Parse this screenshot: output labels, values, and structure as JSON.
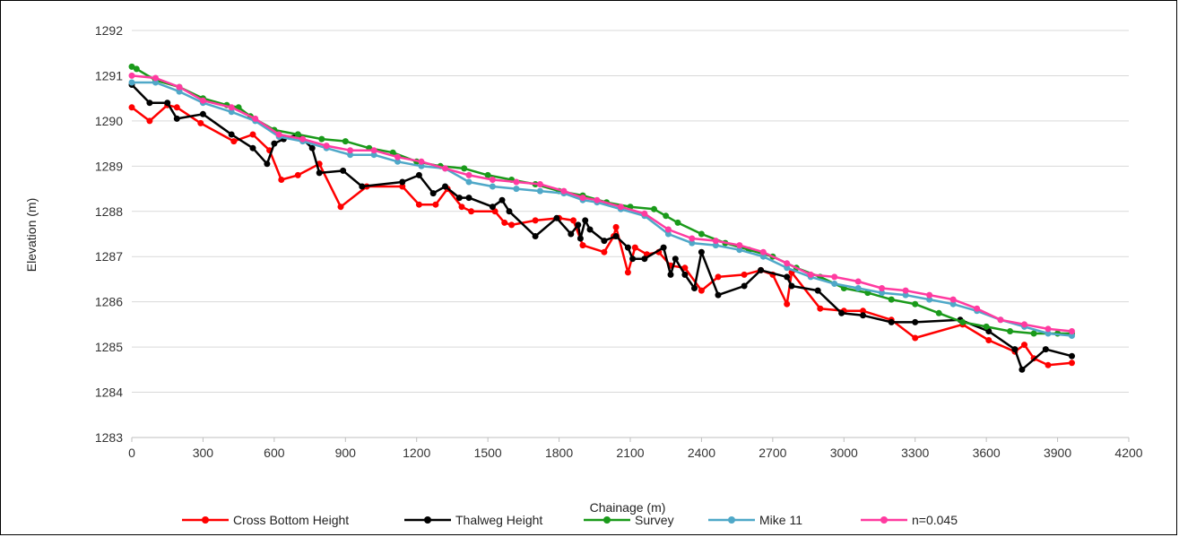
{
  "chart_data": {
    "type": "line",
    "title": "",
    "xlabel": "Chainage (m)",
    "ylabel": "Elevation (m)",
    "xlim": [
      0,
      4200
    ],
    "ylim": [
      1283,
      1292
    ],
    "x_ticks": [
      "0",
      "300",
      "600",
      "900",
      "1200",
      "1500",
      "1800",
      "2100",
      "2400",
      "2700",
      "3000",
      "3300",
      "3600",
      "3900",
      "4200"
    ],
    "y_ticks": [
      "1283",
      "1284",
      "1285",
      "1286",
      "1287",
      "1288",
      "1289",
      "1290",
      "1291",
      "1292"
    ],
    "grid": "horizontal",
    "legend_position": "bottom",
    "series": [
      {
        "name": "Cross Bottom Height",
        "color": "#ff0000",
        "points": [
          [
            0,
            1290.3
          ],
          [
            75,
            1290.0
          ],
          [
            150,
            1290.35
          ],
          [
            190,
            1290.3
          ],
          [
            290,
            1289.95
          ],
          [
            430,
            1289.55
          ],
          [
            510,
            1289.7
          ],
          [
            580,
            1289.35
          ],
          [
            630,
            1288.7
          ],
          [
            700,
            1288.8
          ],
          [
            790,
            1289.05
          ],
          [
            880,
            1288.1
          ],
          [
            990,
            1288.55
          ],
          [
            1140,
            1288.55
          ],
          [
            1210,
            1288.15
          ],
          [
            1280,
            1288.15
          ],
          [
            1330,
            1288.5
          ],
          [
            1390,
            1288.1
          ],
          [
            1430,
            1288.0
          ],
          [
            1530,
            1288.0
          ],
          [
            1570,
            1287.75
          ],
          [
            1600,
            1287.7
          ],
          [
            1700,
            1287.8
          ],
          [
            1800,
            1287.85
          ],
          [
            1860,
            1287.8
          ],
          [
            1900,
            1287.25
          ],
          [
            1990,
            1287.1
          ],
          [
            2030,
            1287.45
          ],
          [
            2040,
            1287.65
          ],
          [
            2090,
            1286.65
          ],
          [
            2120,
            1287.2
          ],
          [
            2170,
            1287.05
          ],
          [
            2220,
            1287.1
          ],
          [
            2270,
            1286.8
          ],
          [
            2330,
            1286.75
          ],
          [
            2400,
            1286.25
          ],
          [
            2470,
            1286.55
          ],
          [
            2580,
            1286.6
          ],
          [
            2650,
            1286.7
          ],
          [
            2700,
            1286.6
          ],
          [
            2760,
            1285.95
          ],
          [
            2780,
            1286.65
          ],
          [
            2900,
            1285.85
          ],
          [
            3000,
            1285.8
          ],
          [
            3080,
            1285.8
          ],
          [
            3200,
            1285.6
          ],
          [
            3300,
            1285.2
          ],
          [
            3500,
            1285.5
          ],
          [
            3610,
            1285.15
          ],
          [
            3720,
            1284.9
          ],
          [
            3760,
            1285.05
          ],
          [
            3800,
            1284.75
          ],
          [
            3860,
            1284.6
          ],
          [
            3960,
            1284.65
          ]
        ]
      },
      {
        "name": "Thalweg Height",
        "color": "#000000",
        "points": [
          [
            0,
            1290.8
          ],
          [
            75,
            1290.4
          ],
          [
            150,
            1290.4
          ],
          [
            190,
            1290.05
          ],
          [
            300,
            1290.15
          ],
          [
            420,
            1289.7
          ],
          [
            510,
            1289.4
          ],
          [
            570,
            1289.05
          ],
          [
            600,
            1289.5
          ],
          [
            640,
            1289.6
          ],
          [
            700,
            1289.7
          ],
          [
            760,
            1289.4
          ],
          [
            790,
            1288.85
          ],
          [
            890,
            1288.9
          ],
          [
            970,
            1288.55
          ],
          [
            1140,
            1288.65
          ],
          [
            1210,
            1288.8
          ],
          [
            1270,
            1288.4
          ],
          [
            1320,
            1288.55
          ],
          [
            1380,
            1288.3
          ],
          [
            1420,
            1288.3
          ],
          [
            1520,
            1288.1
          ],
          [
            1560,
            1288.25
          ],
          [
            1590,
            1288.0
          ],
          [
            1700,
            1287.45
          ],
          [
            1790,
            1287.85
          ],
          [
            1850,
            1287.5
          ],
          [
            1880,
            1287.7
          ],
          [
            1890,
            1287.4
          ],
          [
            1910,
            1287.8
          ],
          [
            1930,
            1287.6
          ],
          [
            1990,
            1287.35
          ],
          [
            2040,
            1287.45
          ],
          [
            2090,
            1287.2
          ],
          [
            2110,
            1286.95
          ],
          [
            2160,
            1286.95
          ],
          [
            2240,
            1287.2
          ],
          [
            2270,
            1286.6
          ],
          [
            2290,
            1286.95
          ],
          [
            2330,
            1286.6
          ],
          [
            2370,
            1286.3
          ],
          [
            2400,
            1287.1
          ],
          [
            2470,
            1286.15
          ],
          [
            2580,
            1286.35
          ],
          [
            2650,
            1286.7
          ],
          [
            2760,
            1286.55
          ],
          [
            2780,
            1286.35
          ],
          [
            2890,
            1286.25
          ],
          [
            2990,
            1285.75
          ],
          [
            3080,
            1285.7
          ],
          [
            3200,
            1285.55
          ],
          [
            3300,
            1285.55
          ],
          [
            3490,
            1285.6
          ],
          [
            3610,
            1285.35
          ],
          [
            3720,
            1284.95
          ],
          [
            3750,
            1284.5
          ],
          [
            3850,
            1284.95
          ],
          [
            3960,
            1284.8
          ]
        ]
      },
      {
        "name": "Survey",
        "color": "#1a9a1a",
        "points": [
          [
            0,
            1291.2
          ],
          [
            20,
            1291.15
          ],
          [
            100,
            1290.9
          ],
          [
            200,
            1290.75
          ],
          [
            300,
            1290.5
          ],
          [
            400,
            1290.35
          ],
          [
            450,
            1290.3
          ],
          [
            500,
            1290.1
          ],
          [
            600,
            1289.8
          ],
          [
            700,
            1289.7
          ],
          [
            800,
            1289.6
          ],
          [
            900,
            1289.55
          ],
          [
            1000,
            1289.4
          ],
          [
            1100,
            1289.3
          ],
          [
            1200,
            1289.1
          ],
          [
            1300,
            1289.0
          ],
          [
            1400,
            1288.95
          ],
          [
            1500,
            1288.8
          ],
          [
            1600,
            1288.7
          ],
          [
            1700,
            1288.6
          ],
          [
            1800,
            1288.45
          ],
          [
            1900,
            1288.35
          ],
          [
            2000,
            1288.2
          ],
          [
            2100,
            1288.1
          ],
          [
            2200,
            1288.05
          ],
          [
            2250,
            1287.9
          ],
          [
            2300,
            1287.75
          ],
          [
            2400,
            1287.5
          ],
          [
            2500,
            1287.3
          ],
          [
            2600,
            1287.15
          ],
          [
            2700,
            1287.0
          ],
          [
            2800,
            1286.75
          ],
          [
            2900,
            1286.55
          ],
          [
            3000,
            1286.3
          ],
          [
            3100,
            1286.2
          ],
          [
            3200,
            1286.05
          ],
          [
            3300,
            1285.95
          ],
          [
            3400,
            1285.75
          ],
          [
            3500,
            1285.55
          ],
          [
            3600,
            1285.45
          ],
          [
            3700,
            1285.35
          ],
          [
            3800,
            1285.3
          ],
          [
            3900,
            1285.3
          ],
          [
            3960,
            1285.3
          ]
        ]
      },
      {
        "name": "Mike 11",
        "color": "#4fa8c8",
        "points": [
          [
            0,
            1290.85
          ],
          [
            100,
            1290.85
          ],
          [
            200,
            1290.65
          ],
          [
            300,
            1290.4
          ],
          [
            420,
            1290.2
          ],
          [
            520,
            1290.0
          ],
          [
            620,
            1289.65
          ],
          [
            720,
            1289.55
          ],
          [
            820,
            1289.4
          ],
          [
            920,
            1289.25
          ],
          [
            1020,
            1289.25
          ],
          [
            1120,
            1289.1
          ],
          [
            1220,
            1289.0
          ],
          [
            1320,
            1288.95
          ],
          [
            1420,
            1288.65
          ],
          [
            1520,
            1288.55
          ],
          [
            1620,
            1288.5
          ],
          [
            1720,
            1288.45
          ],
          [
            1820,
            1288.4
          ],
          [
            1900,
            1288.25
          ],
          [
            1960,
            1288.2
          ],
          [
            2060,
            1288.05
          ],
          [
            2160,
            1287.9
          ],
          [
            2260,
            1287.5
          ],
          [
            2360,
            1287.3
          ],
          [
            2460,
            1287.25
          ],
          [
            2560,
            1287.15
          ],
          [
            2660,
            1287.0
          ],
          [
            2760,
            1286.75
          ],
          [
            2860,
            1286.55
          ],
          [
            2960,
            1286.4
          ],
          [
            3060,
            1286.3
          ],
          [
            3160,
            1286.2
          ],
          [
            3260,
            1286.15
          ],
          [
            3360,
            1286.05
          ],
          [
            3460,
            1285.95
          ],
          [
            3560,
            1285.8
          ],
          [
            3660,
            1285.6
          ],
          [
            3760,
            1285.45
          ],
          [
            3860,
            1285.3
          ],
          [
            3960,
            1285.25
          ]
        ]
      },
      {
        "name": "n=0.045",
        "color": "#ff3ba0",
        "points": [
          [
            0,
            1291.0
          ],
          [
            100,
            1290.95
          ],
          [
            200,
            1290.75
          ],
          [
            300,
            1290.45
          ],
          [
            420,
            1290.3
          ],
          [
            520,
            1290.05
          ],
          [
            620,
            1289.7
          ],
          [
            720,
            1289.6
          ],
          [
            820,
            1289.45
          ],
          [
            920,
            1289.35
          ],
          [
            1020,
            1289.35
          ],
          [
            1120,
            1289.2
          ],
          [
            1220,
            1289.1
          ],
          [
            1320,
            1288.95
          ],
          [
            1420,
            1288.8
          ],
          [
            1520,
            1288.7
          ],
          [
            1620,
            1288.65
          ],
          [
            1720,
            1288.6
          ],
          [
            1820,
            1288.45
          ],
          [
            1900,
            1288.3
          ],
          [
            1960,
            1288.25
          ],
          [
            2060,
            1288.1
          ],
          [
            2160,
            1287.95
          ],
          [
            2260,
            1287.6
          ],
          [
            2360,
            1287.4
          ],
          [
            2460,
            1287.35
          ],
          [
            2560,
            1287.25
          ],
          [
            2660,
            1287.1
          ],
          [
            2760,
            1286.85
          ],
          [
            2860,
            1286.6
          ],
          [
            2960,
            1286.55
          ],
          [
            3060,
            1286.45
          ],
          [
            3160,
            1286.3
          ],
          [
            3260,
            1286.25
          ],
          [
            3360,
            1286.15
          ],
          [
            3460,
            1286.05
          ],
          [
            3560,
            1285.85
          ],
          [
            3660,
            1285.6
          ],
          [
            3760,
            1285.5
          ],
          [
            3860,
            1285.4
          ],
          [
            3960,
            1285.35
          ]
        ]
      }
    ]
  }
}
